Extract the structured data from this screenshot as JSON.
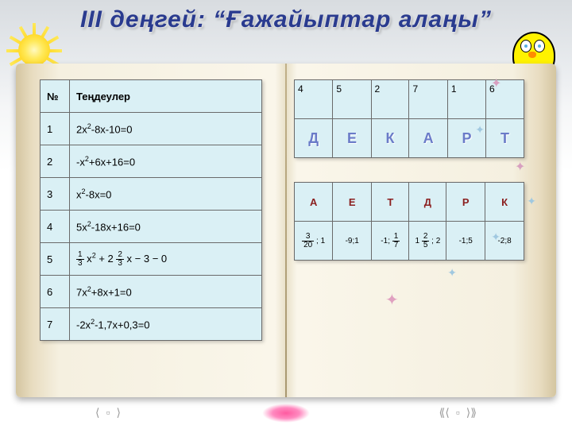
{
  "title": "III деңгей: “Ғажайыптар алаңы”",
  "eq_table": {
    "headers": [
      "№",
      "Теңдеулер"
    ],
    "rows": [
      {
        "n": "1",
        "eq_html": "2x<span class='sup'>2</span>-8x-10=0"
      },
      {
        "n": "2",
        "eq_html": "-x<span class='sup'>2</span>+6x+16=0"
      },
      {
        "n": "3",
        "eq_html": "x<span class='sup'>2</span>-8x=0"
      },
      {
        "n": "4",
        "eq_html": "5x<span class='sup'>2</span>-18x+16=0"
      },
      {
        "n": "5",
        "eq_html": "<span class='frac'><span class='num'>1</span><span class='den'>3</span></span> x<span class='sup'>2</span> + 2 <span class='frac'><span class='num'>2</span><span class='den'>3</span></span> x − 3 − 0"
      },
      {
        "n": "6",
        "eq_html": "7x<span class='sup'>2</span>+8x+1=0"
      },
      {
        "n": "7",
        "eq_html": "-2x<span class='sup'>2</span>-1,7x+0,3=0"
      }
    ]
  },
  "top_right": {
    "nums": [
      "4",
      "5",
      "2",
      "7",
      "1",
      "6"
    ],
    "letters": [
      "Д",
      "Е",
      "К",
      "А",
      "Р",
      "Т"
    ]
  },
  "bottom_right": {
    "letters": [
      "А",
      "Е",
      "Т",
      "Д",
      "Р",
      "К"
    ],
    "vals": [
      "<span class='frac'><span class='num'>3</span><span class='den'>20</span></span> ; 1",
      "-9;1",
      "-1; <span class='frac'><span class='num'>1</span><span class='den'>7</span></span>",
      "1 <span class='frac'><span class='num'>2</span><span class='den'>5</span></span> ; 2",
      "-1;5",
      "-2;8"
    ]
  },
  "colors": {
    "title": "#2a3b8f",
    "table_bg": "#daf0f5",
    "border": "#6a6a6a",
    "blue_letter": "#6a7bc8",
    "red_letter": "#8b2020"
  }
}
